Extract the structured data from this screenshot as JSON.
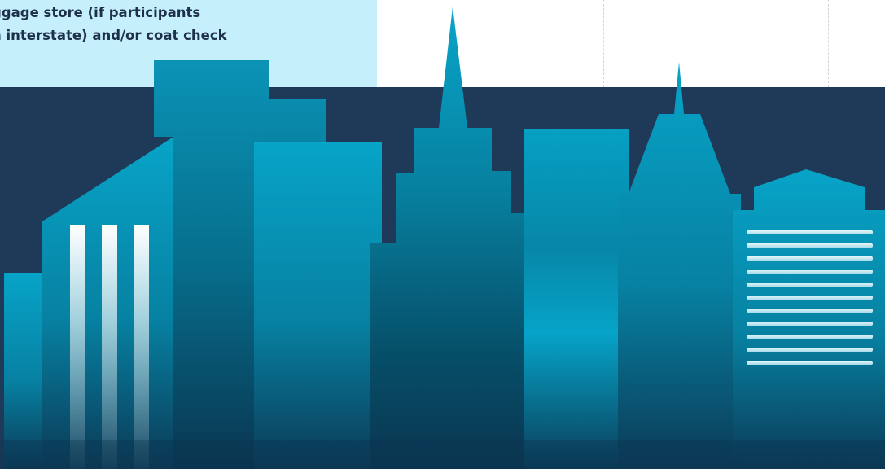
{
  "info_card": {
    "text_line_1": "ggage store (if participants",
    "text_line_2": "n interstate) and/or coat check"
  },
  "colors": {
    "card_background": "#c4effb",
    "navy_background": "#1f3a58",
    "text": "#1e2f4a",
    "building_teal": "#07a0c4",
    "building_dark": "#0b3b55",
    "window_highlight": "#ffffff"
  }
}
